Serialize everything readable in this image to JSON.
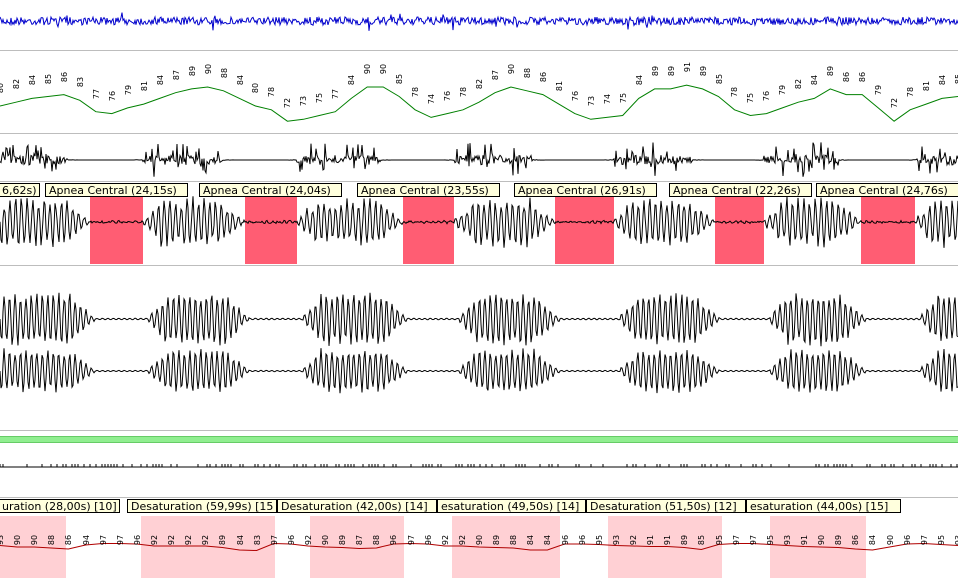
{
  "window": {
    "title": ""
  },
  "channels": [
    {
      "id": "eeg"
    },
    {
      "id": "heart-rate"
    },
    {
      "id": "snore"
    },
    {
      "id": "airflow"
    },
    {
      "id": "thorax"
    },
    {
      "id": "abdomen"
    },
    {
      "id": "position"
    },
    {
      "id": "leg"
    },
    {
      "id": "spo2"
    }
  ],
  "heart_rate_values": [
    "80",
    "82",
    "84",
    "85",
    "86",
    "83",
    "77",
    "76",
    "79",
    "81",
    "84",
    "87",
    "89",
    "90",
    "88",
    "84",
    "80",
    "78",
    "72",
    "73",
    "75",
    "77",
    "84",
    "90",
    "90",
    "85",
    "78",
    "74",
    "76",
    "78",
    "82",
    "87",
    "90",
    "88",
    "86",
    "81",
    "76",
    "73",
    "74",
    "75",
    "84",
    "89",
    "89",
    "91",
    "89",
    "85",
    "78",
    "75",
    "76",
    "79",
    "82",
    "84",
    "89",
    "86",
    "86",
    "79",
    "72",
    "78",
    "81",
    "84",
    "85"
  ],
  "spo2_values": [
    "93",
    "90",
    "90",
    "88",
    "86",
    "94",
    "97",
    "97",
    "96",
    "92",
    "92",
    "92",
    "92",
    "89",
    "84",
    "83",
    "97",
    "96",
    "92",
    "90",
    "89",
    "87",
    "88",
    "96",
    "97",
    "96",
    "92",
    "92",
    "90",
    "89",
    "88",
    "84",
    "84",
    "96",
    "96",
    "95",
    "93",
    "92",
    "91",
    "91",
    "89",
    "85",
    "95",
    "97",
    "97",
    "95",
    "93",
    "91",
    "90",
    "89",
    "86",
    "84",
    "90",
    "96",
    "97",
    "95",
    "93"
  ],
  "apnea_events": [
    {
      "label": "6,62s)"
    },
    {
      "label": "Apnea Central (24,15s)"
    },
    {
      "label": "Apnea Central (24,04s)"
    },
    {
      "label": "Apnea Central (23,55s)"
    },
    {
      "label": "Apnea Central (26,91s)"
    },
    {
      "label": "Apnea Central (22,26s)"
    },
    {
      "label": "Apnea Central (24,76s)"
    }
  ],
  "desat_events": [
    {
      "label": "uration (28,00s) [10]"
    },
    {
      "label": "Desaturation (59,99s) [15"
    },
    {
      "label": "Desaturation (42,00s) [14]"
    },
    {
      "label": "esaturation (49,50s) [14]"
    },
    {
      "label": "Desaturation (51,50s) [12]"
    },
    {
      "label": "esaturation (44,00s) [15]"
    }
  ],
  "colors": {
    "eeg": "#0000cc",
    "heart_rate": "#008000",
    "spo2": "#b00000",
    "apnea_fill": "#ff5d73",
    "desat_fill": "#ffd0d4",
    "band": "#90ee90"
  }
}
